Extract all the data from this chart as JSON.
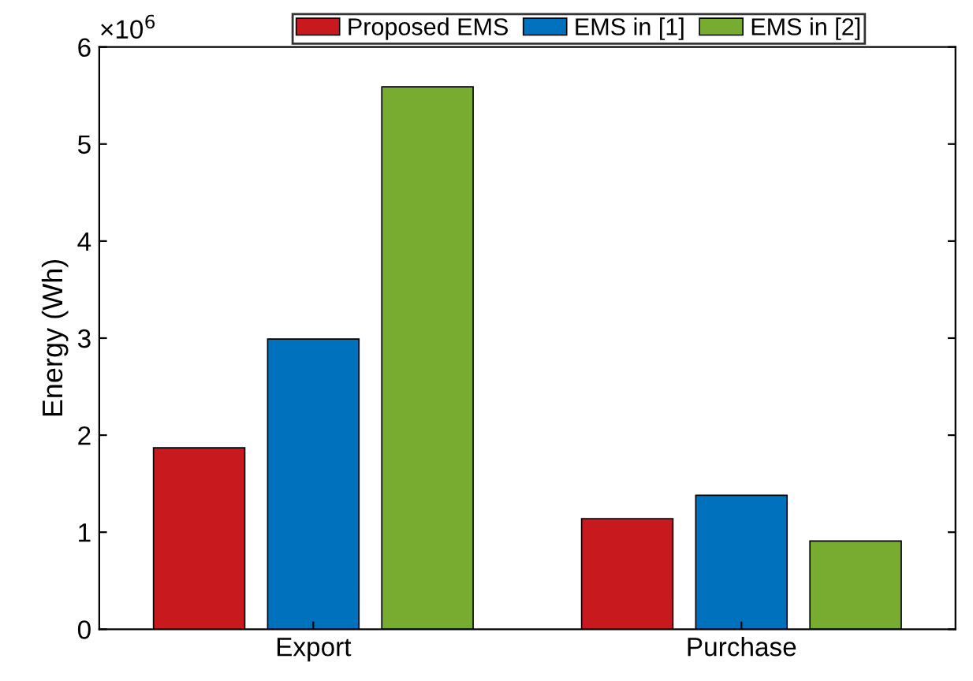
{
  "chart_data": {
    "type": "bar",
    "ylabel": "Energy (Wh)",
    "categories": [
      "Export",
      "Purchase"
    ],
    "series": [
      {
        "name": "Proposed EMS",
        "color": "#c81a1e",
        "values": [
          1.87,
          1.14
        ]
      },
      {
        "name": "EMS in [1]",
        "color": "#0072bd",
        "values": [
          2.99,
          1.38
        ]
      },
      {
        "name": "EMS in [2]",
        "color": "#77ac30",
        "values": [
          5.59,
          0.91
        ]
      }
    ],
    "ylim": [
      0,
      6
    ],
    "yticks": [
      0,
      1,
      2,
      3,
      4,
      5,
      6
    ],
    "annotations": [
      "×10$^{6}$"
    ],
    "legend": "top",
    "grid": false
  }
}
